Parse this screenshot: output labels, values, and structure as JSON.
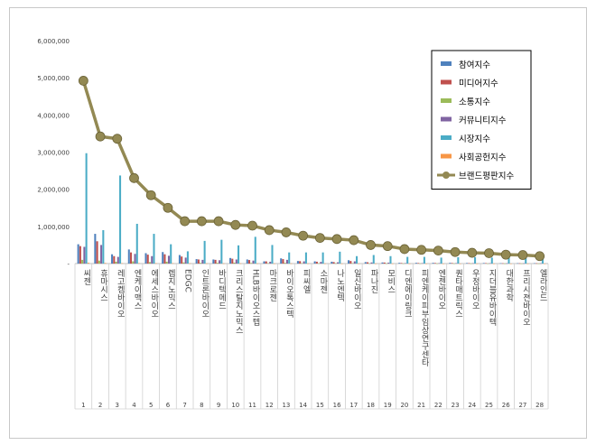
{
  "chart_data": {
    "type": "bar",
    "title": "",
    "xlabel": "",
    "ylabel": "",
    "ylim": [
      0,
      6000000
    ],
    "yticks": [
      0,
      1000000,
      2000000,
      3000000,
      4000000,
      5000000,
      6000000
    ],
    "ytick_labels": [
      "-",
      "1,000,000",
      "2,000,000",
      "3,000,000",
      "4,000,000",
      "5,000,000",
      "6,000,000"
    ],
    "grid": false,
    "legend_position": "top-right",
    "categories": [
      "씨젠",
      "휴마시스",
      "레고켐바이오",
      "엔케이맥스",
      "에세스바이오",
      "렙지노믹스",
      "EDGC",
      "인트론바이오",
      "바디텍메드",
      "크리스탈지노믹스",
      "HLB바이오스텝",
      "마크로젠",
      "바이오톡스텍",
      "피씨엘",
      "소마젠",
      "나노엔텍",
      "일신바이오",
      "파나진",
      "모비스",
      "디엔에이링크",
      "피엔케이피부임상연구센타",
      "엔젠바이오",
      "퀀타매트릭스",
      "우정바이오",
      "지더블유바이텍",
      "대한과학",
      "프리시젼바이오",
      "엘라인드"
    ],
    "rank_labels": [
      "1",
      "2",
      "3",
      "4",
      "5",
      "6",
      "7",
      "8",
      "9",
      "10",
      "11",
      "12",
      "13",
      "14",
      "15",
      "16",
      "17",
      "18",
      "19",
      "20",
      "21",
      "22",
      "23",
      "24",
      "25",
      "26",
      "27",
      "28"
    ],
    "series": [
      {
        "name": "참여지수",
        "color": "#4f81bd",
        "kind": "bar",
        "values": [
          520000,
          800000,
          250000,
          380000,
          280000,
          310000,
          230000,
          120000,
          110000,
          150000,
          110000,
          60000,
          140000,
          70000,
          60000,
          50000,
          90000,
          40000,
          30000,
          20000,
          20000,
          20000,
          20000,
          15000,
          15000,
          10000,
          10000,
          10000
        ]
      },
      {
        "name": "미디어지수",
        "color": "#c0504d",
        "kind": "bar",
        "values": [
          470000,
          600000,
          200000,
          300000,
          240000,
          250000,
          190000,
          110000,
          100000,
          130000,
          95000,
          60000,
          120000,
          65000,
          50000,
          40000,
          70000,
          35000,
          28000,
          15000,
          15000,
          15000,
          15000,
          12000,
          12000,
          8000,
          8000,
          8000
        ]
      },
      {
        "name": "소통지수",
        "color": "#9bbb59",
        "kind": "bar",
        "values": [
          100000,
          80000,
          50000,
          60000,
          40000,
          50000,
          30000,
          20000,
          20000,
          25000,
          18000,
          12000,
          20000,
          12000,
          10000,
          8000,
          12000,
          6000,
          5000,
          4000,
          4000,
          4000,
          4000,
          3000,
          3000,
          2000,
          2000,
          2000
        ]
      },
      {
        "name": "커뮤니티지수",
        "color": "#8064a2",
        "kind": "bar",
        "values": [
          450000,
          500000,
          180000,
          260000,
          200000,
          210000,
          160000,
          100000,
          90000,
          110000,
          80000,
          50000,
          100000,
          60000,
          45000,
          35000,
          60000,
          30000,
          25000,
          12000,
          12000,
          12000,
          12000,
          10000,
          10000,
          7000,
          7000,
          7000
        ]
      },
      {
        "name": "시장지수",
        "color": "#4bacc6",
        "kind": "bar",
        "values": [
          2970000,
          900000,
          2370000,
          1070000,
          800000,
          520000,
          330000,
          610000,
          640000,
          490000,
          720000,
          500000,
          300000,
          300000,
          300000,
          320000,
          200000,
          230000,
          200000,
          180000,
          180000,
          160000,
          170000,
          170000,
          160000,
          160000,
          160000,
          120000
        ]
      },
      {
        "name": "사회공헌지수",
        "color": "#f79646",
        "kind": "bar",
        "values": [
          20000,
          15000,
          10000,
          12000,
          10000,
          10000,
          8000,
          5000,
          5000,
          6000,
          5000,
          3000,
          5000,
          3000,
          3000,
          2000,
          3000,
          2000,
          2000,
          1000,
          1000,
          1000,
          1000,
          1000,
          1000,
          1000,
          1000,
          1000
        ]
      },
      {
        "name": "브랜드평판지수",
        "color": "#938953",
        "kind": "line",
        "values": [
          4920000,
          3420000,
          3360000,
          2300000,
          1840000,
          1500000,
          1140000,
          1140000,
          1140000,
          1040000,
          1020000,
          900000,
          840000,
          750000,
          690000,
          660000,
          630000,
          500000,
          470000,
          390000,
          370000,
          350000,
          310000,
          290000,
          280000,
          240000,
          230000,
          200000
        ]
      }
    ]
  }
}
